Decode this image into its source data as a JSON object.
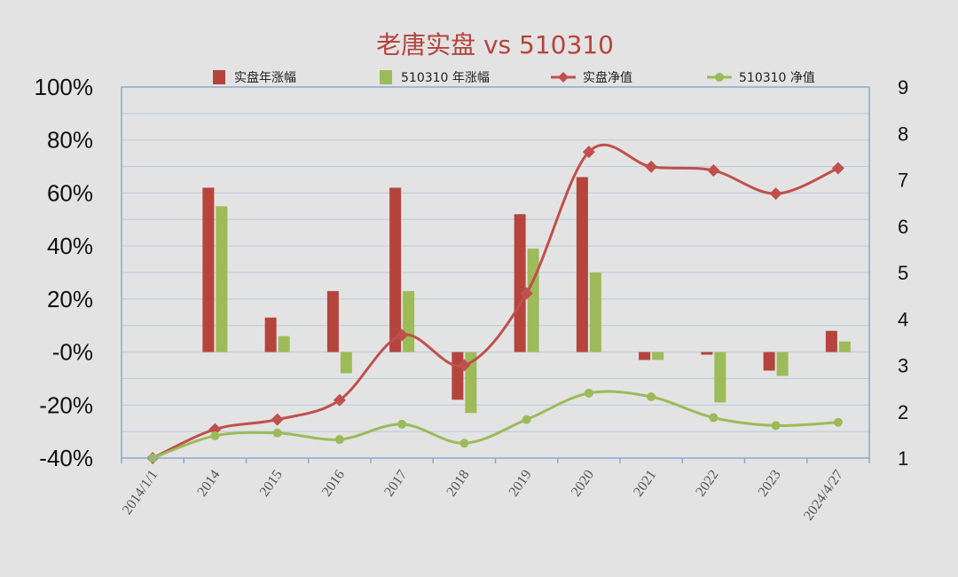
{
  "chart_data": {
    "type": "bar",
    "title": "老唐实盘 vs 510310",
    "categories": [
      "2014/1/1",
      "2014",
      "2015",
      "2016",
      "2017",
      "2018",
      "2019",
      "2020",
      "2021",
      "2022",
      "2023",
      "2024/4/27"
    ],
    "series": [
      {
        "name": "实盘年涨幅",
        "type": "bar",
        "axis": "left",
        "unit": "%",
        "color": "#b5443d",
        "values": [
          null,
          62,
          13,
          23,
          62,
          -18,
          52,
          66,
          -3,
          -1,
          -7,
          8
        ]
      },
      {
        "name": "510310 年涨幅",
        "type": "bar",
        "axis": "left",
        "unit": "%",
        "color": "#9dbb58",
        "values": [
          null,
          55,
          6,
          -8,
          23,
          -23,
          39,
          30,
          -3,
          -19,
          -9,
          4
        ]
      },
      {
        "name": "实盘净值",
        "type": "line",
        "axis": "right",
        "marker": "diamond",
        "color": "#c0504d",
        "values": [
          1.0,
          1.62,
          1.83,
          2.25,
          3.65,
          3.0,
          4.55,
          7.6,
          7.28,
          7.2,
          6.7,
          7.25
        ]
      },
      {
        "name": "510310 净值",
        "type": "line",
        "axis": "right",
        "marker": "circle",
        "color": "#9bbb59",
        "values": [
          1.0,
          1.48,
          1.54,
          1.4,
          1.73,
          1.32,
          1.83,
          2.4,
          2.32,
          1.87,
          1.7,
          1.77
        ]
      }
    ],
    "y_left": {
      "min": -40,
      "max": 100,
      "step": 20,
      "tick_labels": [
        "-40%",
        "-20%",
        "-0%",
        "20%",
        "40%",
        "60%",
        "80%",
        "100%"
      ]
    },
    "y_right": {
      "min": 1,
      "max": 9,
      "step": 1,
      "tick_labels": [
        "1",
        "2",
        "3",
        "4",
        "5",
        "6",
        "7",
        "8",
        "9"
      ]
    },
    "grid": true,
    "legend_position": "top"
  },
  "colors": {
    "title": "#b5443d",
    "grid": "#b7c9de",
    "frame": "#8ea9cc",
    "background": "#e3e3e3"
  }
}
